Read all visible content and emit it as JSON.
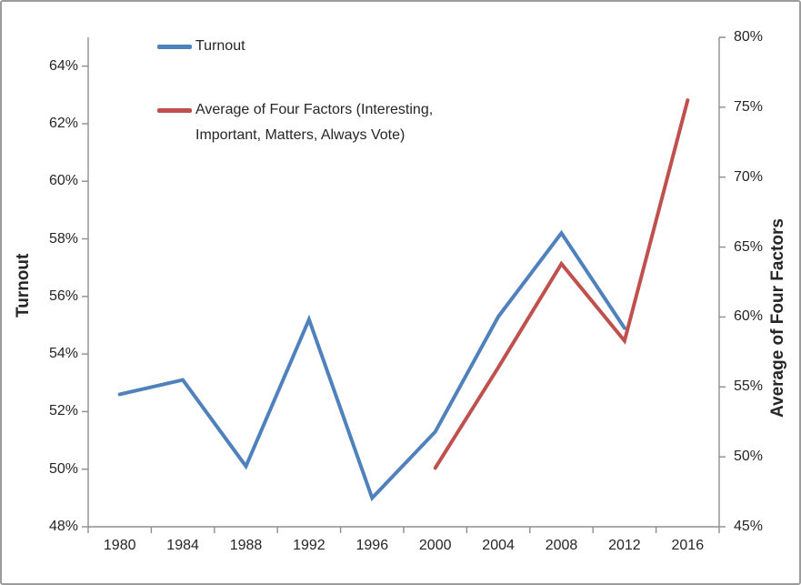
{
  "chart_data": {
    "type": "line",
    "title": "",
    "grid": false,
    "categories": [
      "1980",
      "1984",
      "1988",
      "1992",
      "1996",
      "2000",
      "2004",
      "2008",
      "2012",
      "2016"
    ],
    "series": [
      {
        "name": "Turnout",
        "axis": "left",
        "color": "#4F81BD",
        "values": [
          52.6,
          53.1,
          50.1,
          55.2,
          49.0,
          51.3,
          55.3,
          58.2,
          54.9,
          null
        ]
      },
      {
        "name": "Average of Four Factors (Interesting, Important, Matters, Always Vote)",
        "axis": "right",
        "color": "#C0504D",
        "values": [
          null,
          null,
          null,
          null,
          null,
          49.2,
          56.4,
          63.8,
          58.3,
          75.5
        ]
      }
    ],
    "left_axis": {
      "title": "Turnout",
      "range": [
        48,
        65
      ],
      "ticks": [
        {
          "value": 48,
          "label": "48%"
        },
        {
          "value": 50,
          "label": "50%"
        },
        {
          "value": 52,
          "label": "52%"
        },
        {
          "value": 54,
          "label": "54%"
        },
        {
          "value": 56,
          "label": "56%"
        },
        {
          "value": 58,
          "label": "58%"
        },
        {
          "value": 60,
          "label": "60%"
        },
        {
          "value": 62,
          "label": "62%"
        },
        {
          "value": 64,
          "label": "64%"
        }
      ]
    },
    "right_axis": {
      "title": "Average of Four Factors",
      "range": [
        45,
        80
      ],
      "ticks": [
        {
          "value": 45,
          "label": "45%"
        },
        {
          "value": 50,
          "label": "50%"
        },
        {
          "value": 55,
          "label": "55%"
        },
        {
          "value": 60,
          "label": "60%"
        },
        {
          "value": 65,
          "label": "65%"
        },
        {
          "value": 70,
          "label": "70%"
        },
        {
          "value": 75,
          "label": "75%"
        },
        {
          "value": 80,
          "label": "80%"
        }
      ]
    },
    "legend": {
      "position": "top-left-inside",
      "items": [
        {
          "label": "Turnout",
          "color": "#4F81BD"
        },
        {
          "lines": [
            "Average of Four Factors (Interesting,",
            "Important, Matters, Always Vote)"
          ],
          "color": "#C0504D"
        }
      ]
    },
    "axis_line_color": "#8E8E8E",
    "text_color": "#262626"
  }
}
